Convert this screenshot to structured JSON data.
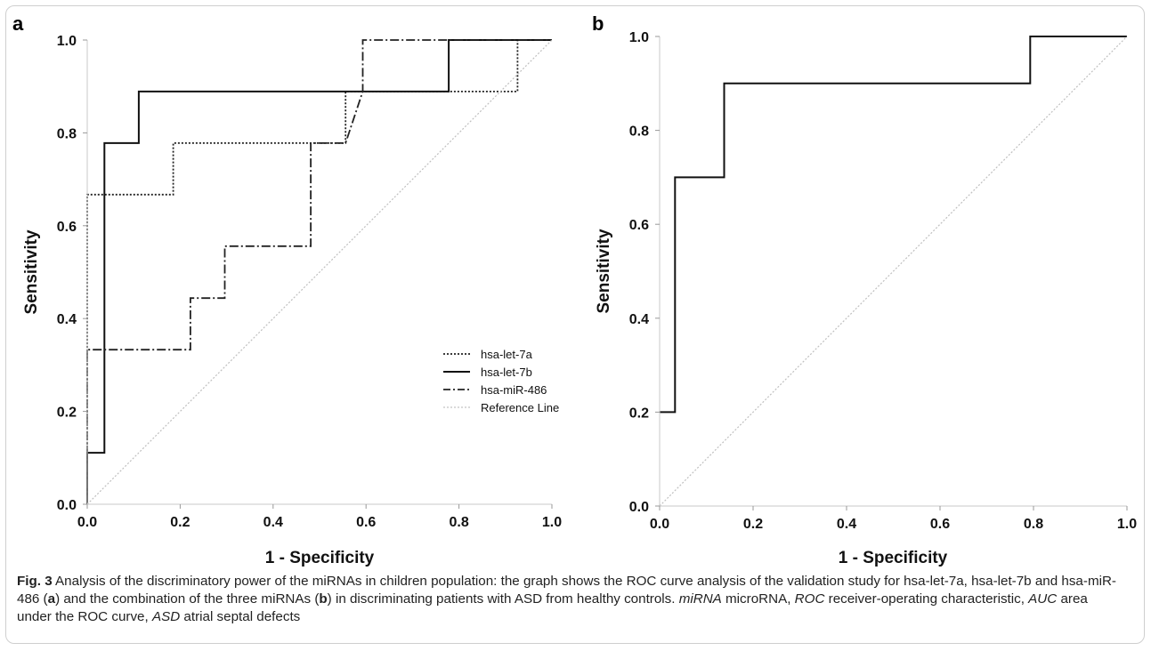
{
  "chart_data": [
    {
      "panel": "a",
      "type": "line",
      "xlabel": "1 - Specificity",
      "ylabel": "Sensitivity",
      "xlim": [
        0,
        1
      ],
      "ylim": [
        0,
        1
      ],
      "xticks": [
        "0.0",
        "0.2",
        "0.4",
        "0.6",
        "0.8",
        "1.0"
      ],
      "yticks": [
        "0.0",
        "0.2",
        "0.4",
        "0.6",
        "0.8",
        "1.0"
      ],
      "legend_position": "lower-right",
      "series": [
        {
          "name": "hsa-let-7a",
          "style": "dotted",
          "color": "#222222",
          "points": [
            [
              0,
              0
            ],
            [
              0,
              0.667
            ],
            [
              0.185,
              0.667
            ],
            [
              0.185,
              0.778
            ],
            [
              0.556,
              0.778
            ],
            [
              0.556,
              0.889
            ],
            [
              0.926,
              0.889
            ],
            [
              0.926,
              1
            ],
            [
              1,
              1
            ]
          ]
        },
        {
          "name": "hsa-let-7b",
          "style": "solid",
          "color": "#111111",
          "points": [
            [
              0,
              0
            ],
            [
              0,
              0.111
            ],
            [
              0.037,
              0.111
            ],
            [
              0.037,
              0.778
            ],
            [
              0.111,
              0.778
            ],
            [
              0.111,
              0.889
            ],
            [
              0.778,
              0.889
            ],
            [
              0.778,
              1
            ],
            [
              1,
              1
            ]
          ]
        },
        {
          "name": "hsa-miR-486",
          "style": "dashdot",
          "color": "#222222",
          "points": [
            [
              0,
              0
            ],
            [
              0,
              0.333
            ],
            [
              0.222,
              0.333
            ],
            [
              0.222,
              0.444
            ],
            [
              0.296,
              0.444
            ],
            [
              0.296,
              0.556
            ],
            [
              0.481,
              0.556
            ],
            [
              0.481,
              0.778
            ],
            [
              0.556,
              0.778
            ],
            [
              0.593,
              0.889
            ],
            [
              0.593,
              1
            ],
            [
              1,
              1
            ]
          ]
        },
        {
          "name": "Reference Line",
          "style": "reference",
          "color": "#bfbfbf",
          "points": [
            [
              0,
              0
            ],
            [
              1,
              1
            ]
          ]
        }
      ]
    },
    {
      "panel": "b",
      "type": "line",
      "xlabel": "1 - Specificity",
      "ylabel": "Sensitivity",
      "xlim": [
        0,
        1
      ],
      "ylim": [
        0,
        1
      ],
      "xticks": [
        "0.0",
        "0.2",
        "0.4",
        "0.6",
        "0.8",
        "1.0"
      ],
      "yticks": [
        "0.0",
        "0.2",
        "0.4",
        "0.6",
        "0.8",
        "1.0"
      ],
      "series": [
        {
          "style": "solid",
          "color": "#111111",
          "points": [
            [
              0,
              0.2
            ],
            [
              0.033,
              0.2
            ],
            [
              0.033,
              0.7
            ],
            [
              0.138,
              0.7
            ],
            [
              0.138,
              0.9
            ],
            [
              0.793,
              0.9
            ],
            [
              0.793,
              1
            ],
            [
              1,
              1
            ]
          ]
        },
        {
          "style": "reference",
          "color": "#bfbfbf",
          "points": [
            [
              0,
              0
            ],
            [
              1,
              1
            ]
          ]
        }
      ]
    }
  ],
  "caption": {
    "fig_label": "Fig. 3",
    "t1": " Analysis of the discriminatory power of the miRNAs in children population: the graph shows the ROC curve analysis of the validation study for hsa-let-7a, hsa-let-7b and hsa-miR-486 (",
    "p1": "a",
    "t2": ") and the combination of the three miRNAs (",
    "p2": "b",
    "t3": ") in discriminating patients with ASD from healthy controls. ",
    "a1": "miRNA",
    "d1": " microRNA, ",
    "a2": "ROC",
    "d2": " receiver-operating characteristic, ",
    "a3": "AUC",
    "d3": " area under the ROC curve, ",
    "a4": "ASD",
    "d4": " atrial septal defects"
  }
}
